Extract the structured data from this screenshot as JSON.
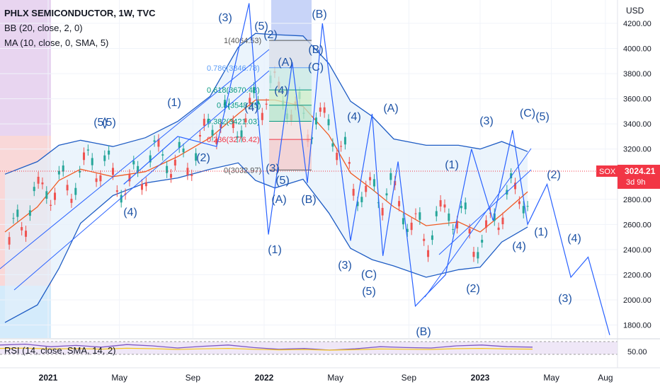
{
  "header": {
    "symbol": "PHLX SEMICONDUCTOR, 1W, TVC",
    "bb_label": "BB (20, close, 2, 0)",
    "ma_label": "MA (10, close, 0, SMA, 5)",
    "currency": "USD",
    "rsi_label": "RSI (14, close, SMA, 14, 2)"
  },
  "price_tag": {
    "symbol": "SOX",
    "value": "3024.21",
    "countdown": "3d 9h",
    "color": "#f23645"
  },
  "colors": {
    "wave": "#2962ff",
    "wave_text": "#1e53a5",
    "band": "#1e5cc4",
    "band_fill": "#e3f0fb",
    "ma": "#f05a22",
    "rsi": "#7e57c2",
    "rsi_ma": "#f5c518",
    "candle_up": "#26a69a",
    "candle_down": "#ef5350",
    "fib_red": "#f23645",
    "fib_green": "#089981",
    "fib_blue": "#5b9cf6"
  },
  "chart_data": {
    "type": "line",
    "title": "PHLX SEMICONDUCTOR, 1W, TVC",
    "ylabel": "USD",
    "ylim": [
      1580,
      4400
    ],
    "y_ticks": [
      "4200.00",
      "4000.00",
      "3800.00",
      "3600.00",
      "3400.00",
      "3200.00",
      "2800.00",
      "2600.00",
      "2400.00",
      "2200.00",
      "2000.00",
      "1800.00"
    ],
    "y_tick_values": [
      4200,
      4000,
      3800,
      3600,
      3400,
      3200,
      2800,
      2600,
      2400,
      2200,
      2000,
      1800
    ],
    "x_ticks": [
      "2021",
      "May",
      "Sep",
      "2022",
      "May",
      "Sep",
      "2023",
      "May",
      "Aug"
    ],
    "x_tick_values": [
      2021.0,
      2021.33,
      2021.67,
      2022.0,
      2022.33,
      2022.67,
      2023.0,
      2023.33,
      2023.58
    ],
    "xlim": [
      2020.8,
      2023.68
    ],
    "grid": true,
    "series": [
      {
        "name": "BB (20, close, 2, 0)",
        "values": [
          [
            2020.8,
            3000
          ],
          [
            2020.95,
            3100
          ],
          [
            2021.05,
            3230
          ],
          [
            2021.15,
            3270
          ],
          [
            2021.3,
            3220
          ],
          [
            2021.45,
            3290
          ],
          [
            2021.6,
            3420
          ],
          [
            2021.75,
            3620
          ],
          [
            2021.88,
            4010
          ],
          [
            2021.96,
            4120
          ],
          [
            2022.05,
            4110
          ],
          [
            2022.18,
            4100
          ],
          [
            2022.3,
            3880
          ],
          [
            2022.4,
            3580
          ],
          [
            2022.5,
            3460
          ],
          [
            2022.6,
            3280
          ],
          [
            2022.75,
            3230
          ],
          [
            2022.9,
            3230
          ],
          [
            2023.0,
            3200
          ],
          [
            2023.1,
            3260
          ],
          [
            2023.22,
            3180
          ]
        ]
      },
      {
        "name": "BB basis",
        "values": [
          [
            2020.8,
            2540
          ],
          [
            2020.95,
            2740
          ],
          [
            2021.05,
            2950
          ],
          [
            2021.15,
            3040
          ],
          [
            2021.3,
            2980
          ],
          [
            2021.45,
            3020
          ],
          [
            2021.6,
            3140
          ],
          [
            2021.75,
            3290
          ],
          [
            2021.88,
            3480
          ],
          [
            2021.96,
            3590
          ],
          [
            2022.05,
            3590
          ],
          [
            2022.18,
            3540
          ],
          [
            2022.3,
            3310
          ],
          [
            2022.4,
            3010
          ],
          [
            2022.5,
            2880
          ],
          [
            2022.6,
            2740
          ],
          [
            2022.75,
            2590
          ],
          [
            2022.9,
            2620
          ],
          [
            2023.0,
            2540
          ],
          [
            2023.1,
            2680
          ],
          [
            2023.22,
            2860
          ]
        ]
      },
      {
        "name": "BB lower",
        "values": [
          [
            2020.8,
            1820
          ],
          [
            2020.95,
            1960
          ],
          [
            2021.05,
            2250
          ],
          [
            2021.15,
            2610
          ],
          [
            2021.3,
            2830
          ],
          [
            2021.45,
            2930
          ],
          [
            2021.6,
            2970
          ],
          [
            2021.75,
            3040
          ],
          [
            2021.88,
            3090
          ],
          [
            2021.96,
            2950
          ],
          [
            2022.05,
            2890
          ],
          [
            2022.18,
            2960
          ],
          [
            2022.3,
            2690
          ],
          [
            2022.4,
            2410
          ],
          [
            2022.5,
            2320
          ],
          [
            2022.6,
            2270
          ],
          [
            2022.75,
            2180
          ],
          [
            2022.9,
            2240
          ],
          [
            2023.0,
            2260
          ],
          [
            2023.1,
            2460
          ],
          [
            2023.22,
            2580
          ]
        ]
      },
      {
        "name": "RSI (14, close, SMA, 14, 2)",
        "values": [
          62,
          64,
          58,
          61,
          57,
          63,
          60,
          55,
          59,
          62,
          56,
          52,
          54,
          50,
          53,
          58,
          56,
          55,
          60,
          62,
          58,
          57
        ]
      }
    ],
    "price_line": 3024.21,
    "fib_levels": [
      {
        "label": "1(4064.53)",
        "value": 4064.53
      },
      {
        "label": "0.786(3846.78)",
        "value": 3846.78
      },
      {
        "label": "0.618(3670.48)",
        "value": 3670.48
      },
      {
        "label": "0.5(3548.75)",
        "value": 3548.75
      },
      {
        "label": "0.382(3421.03)",
        "value": 3421.03
      },
      {
        "label": "0.236(3276.42)",
        "value": 3276.42
      },
      {
        "label": "0(3032.97)",
        "value": 3032.97
      }
    ],
    "rsi_ticks": [
      "50.00"
    ],
    "wave_labels": [
      "(1)",
      "(2)",
      "(3)",
      "(4)",
      "(5)",
      "(A)",
      "(B)",
      "(C)"
    ]
  }
}
